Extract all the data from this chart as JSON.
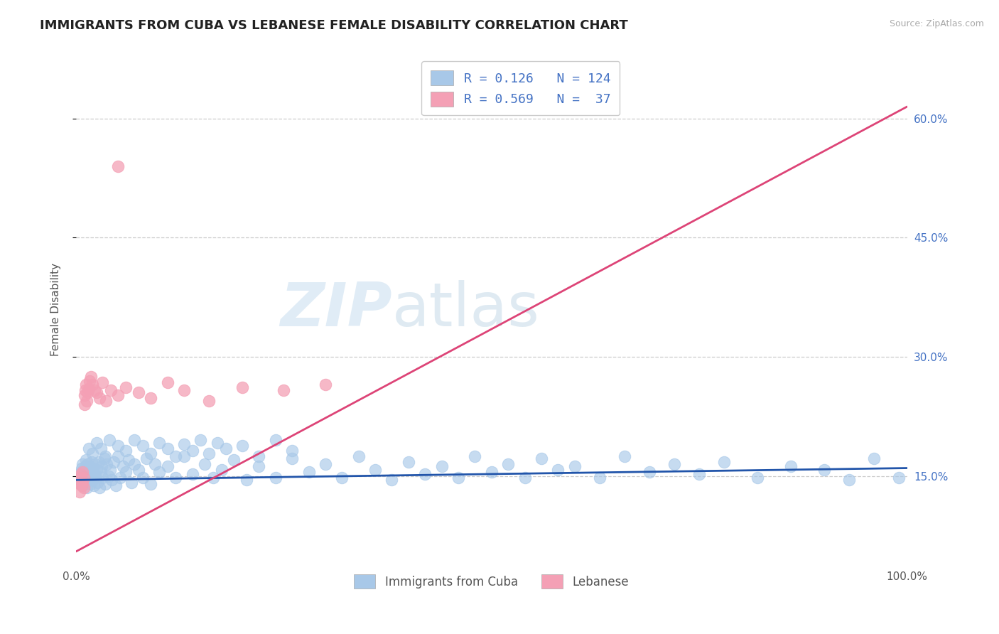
{
  "title": "IMMIGRANTS FROM CUBA VS LEBANESE FEMALE DISABILITY CORRELATION CHART",
  "source": "Source: ZipAtlas.com",
  "ylabel": "Female Disability",
  "legend_label_1": "Immigrants from Cuba",
  "legend_label_2": "Lebanese",
  "R1": 0.126,
  "N1": 124,
  "R2": 0.569,
  "N2": 37,
  "color_blue": "#a8c8e8",
  "color_pink": "#f4a0b5",
  "line_color_blue": "#2255aa",
  "line_color_pink": "#dd4477",
  "background": "#ffffff",
  "watermark_zip": "ZIP",
  "watermark_atlas": "atlas",
  "xlim": [
    0.0,
    1.0
  ],
  "ylim": [
    0.04,
    0.68
  ],
  "yticks": [
    0.15,
    0.3,
    0.45,
    0.6
  ],
  "ytick_labels": [
    "15.0%",
    "30.0%",
    "45.0%",
    "60.0%"
  ],
  "blue_trend_x": [
    0.0,
    1.0
  ],
  "blue_trend_y": [
    0.145,
    0.16
  ],
  "pink_trend_x": [
    0.0,
    1.0
  ],
  "pink_trend_y": [
    0.055,
    0.615
  ],
  "blue_x": [
    0.005,
    0.006,
    0.007,
    0.007,
    0.008,
    0.008,
    0.009,
    0.009,
    0.01,
    0.01,
    0.011,
    0.011,
    0.012,
    0.012,
    0.013,
    0.013,
    0.014,
    0.014,
    0.015,
    0.015,
    0.016,
    0.016,
    0.017,
    0.018,
    0.019,
    0.02,
    0.02,
    0.021,
    0.022,
    0.023,
    0.024,
    0.025,
    0.026,
    0.027,
    0.028,
    0.03,
    0.031,
    0.032,
    0.034,
    0.035,
    0.037,
    0.039,
    0.041,
    0.043,
    0.045,
    0.048,
    0.05,
    0.053,
    0.056,
    0.06,
    0.063,
    0.067,
    0.07,
    0.075,
    0.08,
    0.085,
    0.09,
    0.095,
    0.1,
    0.11,
    0.12,
    0.13,
    0.14,
    0.155,
    0.165,
    0.175,
    0.19,
    0.205,
    0.22,
    0.24,
    0.26,
    0.28,
    0.3,
    0.32,
    0.34,
    0.36,
    0.38,
    0.4,
    0.42,
    0.44,
    0.46,
    0.48,
    0.5,
    0.52,
    0.54,
    0.56,
    0.58,
    0.6,
    0.63,
    0.66,
    0.69,
    0.72,
    0.75,
    0.78,
    0.82,
    0.86,
    0.9,
    0.93,
    0.96,
    0.99,
    0.015,
    0.02,
    0.025,
    0.03,
    0.035,
    0.04,
    0.05,
    0.06,
    0.07,
    0.08,
    0.09,
    0.1,
    0.11,
    0.12,
    0.13,
    0.14,
    0.15,
    0.16,
    0.17,
    0.18,
    0.2,
    0.22,
    0.24,
    0.26
  ],
  "blue_y": [
    0.148,
    0.155,
    0.142,
    0.16,
    0.138,
    0.165,
    0.145,
    0.152,
    0.14,
    0.158,
    0.155,
    0.162,
    0.148,
    0.17,
    0.135,
    0.145,
    0.158,
    0.165,
    0.15,
    0.155,
    0.148,
    0.162,
    0.14,
    0.155,
    0.168,
    0.145,
    0.16,
    0.138,
    0.152,
    0.165,
    0.148,
    0.158,
    0.142,
    0.168,
    0.135,
    0.155,
    0.162,
    0.148,
    0.172,
    0.14,
    0.165,
    0.15,
    0.158,
    0.145,
    0.168,
    0.138,
    0.175,
    0.148,
    0.162,
    0.155,
    0.17,
    0.142,
    0.165,
    0.158,
    0.148,
    0.172,
    0.14,
    0.165,
    0.155,
    0.162,
    0.148,
    0.175,
    0.152,
    0.165,
    0.148,
    0.158,
    0.17,
    0.145,
    0.162,
    0.148,
    0.172,
    0.155,
    0.165,
    0.148,
    0.175,
    0.158,
    0.145,
    0.168,
    0.152,
    0.162,
    0.148,
    0.175,
    0.155,
    0.165,
    0.148,
    0.172,
    0.158,
    0.162,
    0.148,
    0.175,
    0.155,
    0.165,
    0.152,
    0.168,
    0.148,
    0.162,
    0.158,
    0.145,
    0.172,
    0.148,
    0.185,
    0.178,
    0.192,
    0.185,
    0.175,
    0.195,
    0.188,
    0.182,
    0.195,
    0.188,
    0.178,
    0.192,
    0.185,
    0.175,
    0.19,
    0.182,
    0.195,
    0.178,
    0.192,
    0.185,
    0.188,
    0.175,
    0.195,
    0.182
  ],
  "pink_x": [
    0.004,
    0.005,
    0.005,
    0.006,
    0.006,
    0.007,
    0.008,
    0.008,
    0.009,
    0.009,
    0.01,
    0.01,
    0.011,
    0.012,
    0.013,
    0.014,
    0.015,
    0.016,
    0.018,
    0.02,
    0.022,
    0.025,
    0.028,
    0.032,
    0.036,
    0.042,
    0.05,
    0.06,
    0.075,
    0.09,
    0.11,
    0.13,
    0.16,
    0.2,
    0.25,
    0.3,
    0.05
  ],
  "pink_y": [
    0.13,
    0.148,
    0.14,
    0.152,
    0.145,
    0.138,
    0.155,
    0.142,
    0.148,
    0.135,
    0.24,
    0.252,
    0.258,
    0.265,
    0.245,
    0.255,
    0.26,
    0.27,
    0.275,
    0.265,
    0.258,
    0.255,
    0.248,
    0.268,
    0.245,
    0.258,
    0.252,
    0.262,
    0.255,
    0.248,
    0.268,
    0.258,
    0.245,
    0.262,
    0.258,
    0.265,
    0.54
  ]
}
